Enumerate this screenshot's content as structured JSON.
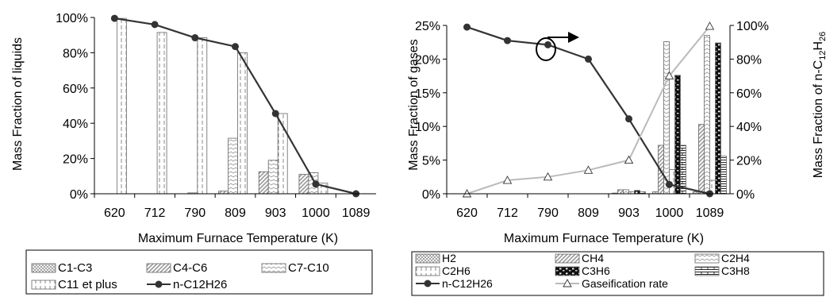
{
  "chart_data": [
    {
      "type": "bar",
      "categories": [
        "620",
        "712",
        "790",
        "809",
        "903",
        "1000",
        "1089"
      ],
      "xlabel": "Maximum Furnace Temperature (K)",
      "ylabel": "Mass Fraction of liquids",
      "ylim": [
        0,
        100
      ],
      "yticks": [
        "0%",
        "20%",
        "40%",
        "60%",
        "80%",
        "100%"
      ],
      "legend_position": "bottom",
      "series": [
        {
          "name": "C1-C3",
          "pattern": "crosshatch",
          "values": [
            0,
            0,
            0,
            0,
            0,
            0,
            0
          ]
        },
        {
          "name": "C4-C6",
          "pattern": "diagonal",
          "values": [
            0,
            0,
            0,
            1.5,
            12.5,
            11,
            0
          ]
        },
        {
          "name": "C7-C10",
          "pattern": "zigzag",
          "values": [
            0,
            0,
            0.5,
            31.5,
            19,
            12,
            0
          ]
        },
        {
          "name": "C11 et plus",
          "pattern": "vertical",
          "values": [
            99.5,
            91.5,
            88.5,
            80,
            45.5,
            6,
            0
          ]
        }
      ],
      "line_series": [
        {
          "name": "n-C12H26",
          "color": "#333333",
          "values": [
            99.5,
            96,
            88.5,
            83.5,
            45.5,
            5.5,
            0
          ]
        }
      ]
    },
    {
      "type": "bar",
      "categories": [
        "620",
        "712",
        "790",
        "809",
        "903",
        "1000",
        "1089"
      ],
      "xlabel": "Maximum Furnace Temperature (K)",
      "ylabel": "Mass Fraction of gases",
      "y2label_prefix": "Mass Fraction of n-C",
      "y2label_sub1": "12",
      "y2label_mid": "H",
      "y2label_sub2": "26",
      "ylim": [
        0,
        25
      ],
      "y2lim": [
        0,
        100
      ],
      "yticks": [
        "0%",
        "5%",
        "10%",
        "15%",
        "20%",
        "25%"
      ],
      "y2ticks": [
        "0%",
        "20%",
        "40%",
        "60%",
        "80%",
        "100%"
      ],
      "legend_position": "bottom",
      "series": [
        {
          "name": "H2",
          "pattern": "crosshatch",
          "values": [
            0,
            0,
            0,
            0,
            0.1,
            0.3,
            0.3
          ]
        },
        {
          "name": "CH4",
          "pattern": "diagonal",
          "values": [
            0,
            0,
            0,
            0,
            0.6,
            7.2,
            10.3
          ]
        },
        {
          "name": "C2H4",
          "pattern": "zigzag",
          "values": [
            0,
            0,
            0,
            0,
            0.6,
            22.6,
            23.5
          ]
        },
        {
          "name": "C2H6",
          "pattern": "vertical",
          "values": [
            0,
            0,
            0,
            0,
            0.3,
            3.6,
            2
          ]
        },
        {
          "name": "C3H6",
          "pattern": "blackbricks",
          "values": [
            0,
            0,
            0,
            0,
            0.5,
            17.6,
            22.4
          ]
        },
        {
          "name": "C3H8",
          "pattern": "bricks",
          "values": [
            0,
            0,
            0,
            0,
            0.3,
            7.2,
            5.6
          ]
        }
      ],
      "line_series": [
        {
          "name": "n-C12H26",
          "axis": "right",
          "color": "#333333",
          "values": [
            99,
            91,
            88.5,
            80,
            44.5,
            5.5,
            0
          ]
        },
        {
          "name": "Gaseification rate",
          "axis": "right",
          "color": "#bbbbbb",
          "values": [
            0,
            8,
            10,
            14,
            20,
            70,
            99.5
          ]
        }
      ]
    }
  ]
}
